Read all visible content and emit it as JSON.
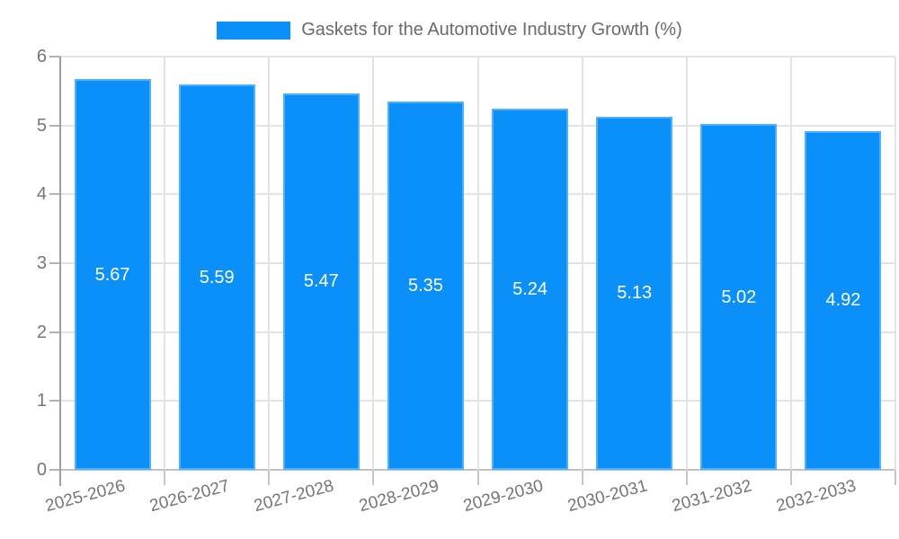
{
  "legend": {
    "label": "Gaskets for the Automotive Industry Growth (%)",
    "swatch_color": "#0a90f8"
  },
  "chart_data": {
    "type": "bar",
    "title": "Gaskets for the Automotive Industry Growth (%)",
    "categories": [
      "2025-2026",
      "2026-2027",
      "2027-2028",
      "2028-2029",
      "2029-2030",
      "2030-2031",
      "2031-2032",
      "2032-2033"
    ],
    "values": [
      5.67,
      5.59,
      5.47,
      5.35,
      5.24,
      5.13,
      5.02,
      4.92
    ],
    "value_labels": [
      "5.67",
      "5.59",
      "5.47",
      "5.35",
      "5.24",
      "5.13",
      "5.02",
      "4.92"
    ],
    "series": [
      {
        "name": "Gaskets for the Automotive Industry Growth (%)",
        "values": [
          5.67,
          5.59,
          5.47,
          5.35,
          5.24,
          5.13,
          5.02,
          4.92
        ]
      }
    ],
    "xlabel": "",
    "ylabel": "",
    "ylim": [
      0,
      6
    ],
    "yticks": [
      0,
      1,
      2,
      3,
      4,
      5,
      6
    ],
    "grid": true,
    "legend_position": "top",
    "bar_color": "#0a90f8",
    "value_label_color": "#ffffff",
    "axis_text_color": "#757575"
  }
}
